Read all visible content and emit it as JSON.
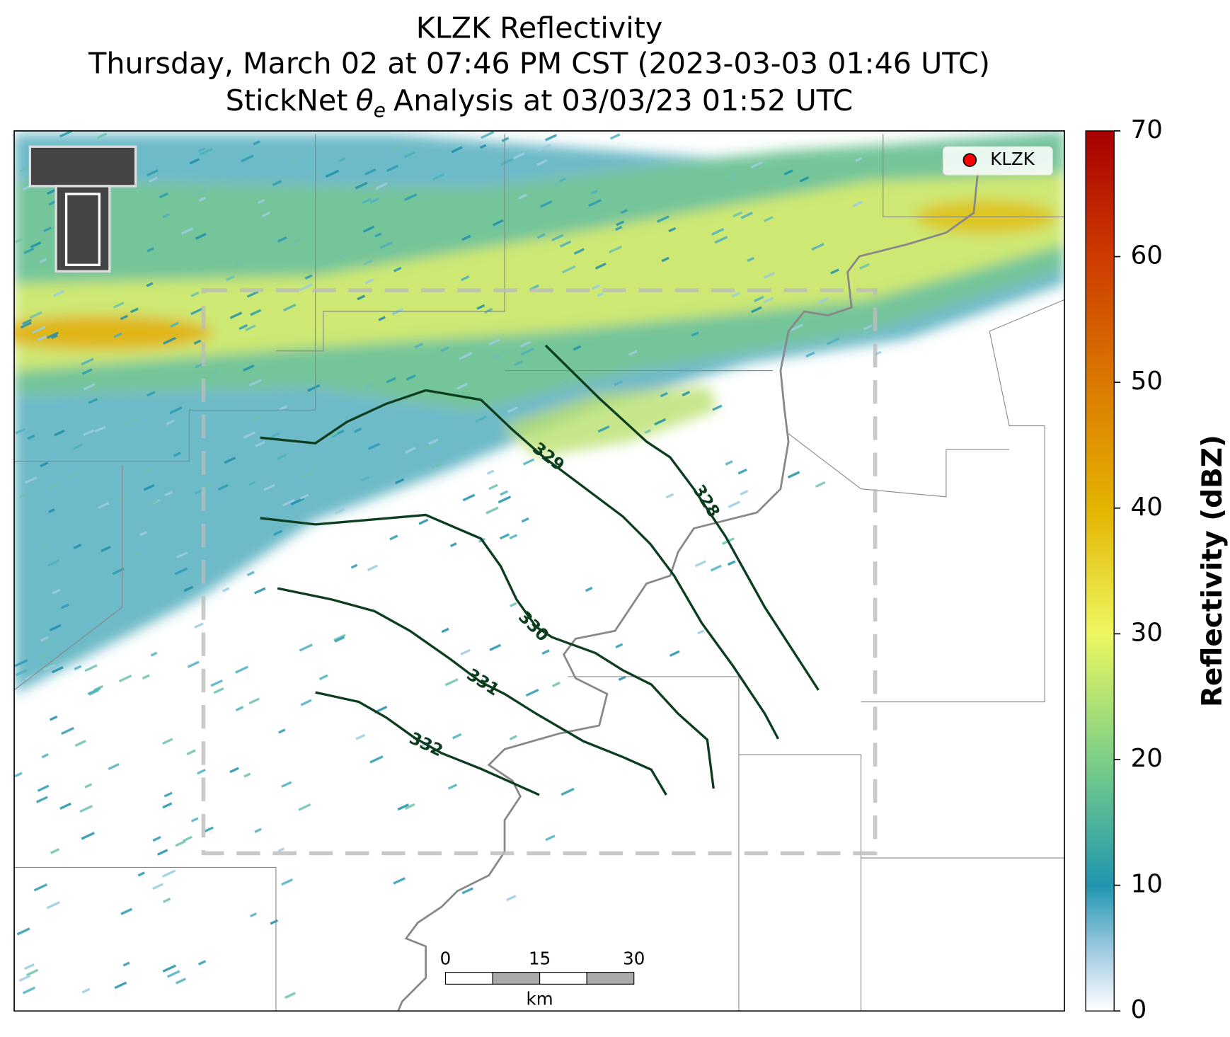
{
  "title": {
    "line1": "KLZK Reflectivity",
    "line2": "Thursday, March 02 at 07:46 PM CST (2023-03-03 01:46 UTC)",
    "line3": {
      "before": "StickNet",
      "symbol": "θ",
      "subscript": "e",
      "after": "Analysis at 03/03/23 01:52 UTC"
    }
  },
  "legend": {
    "label": "KLZK",
    "color": "#ff0000"
  },
  "colorbar": {
    "label": "Reflectivity (dBZ)",
    "range": [
      0,
      70
    ],
    "ticks": [
      0,
      10,
      20,
      30,
      40,
      50,
      60,
      70
    ]
  },
  "contours": [
    {
      "value": 328,
      "color": "#0b3d1e"
    },
    {
      "value": 329,
      "color": "#0b3d1e"
    },
    {
      "value": 330,
      "color": "#0b3d1e"
    },
    {
      "value": 331,
      "color": "#0b3d1e"
    },
    {
      "value": 332,
      "color": "#0b3d1e"
    }
  ],
  "scale_bar": {
    "ticks": [
      0,
      15,
      30
    ],
    "unit": "km"
  }
}
